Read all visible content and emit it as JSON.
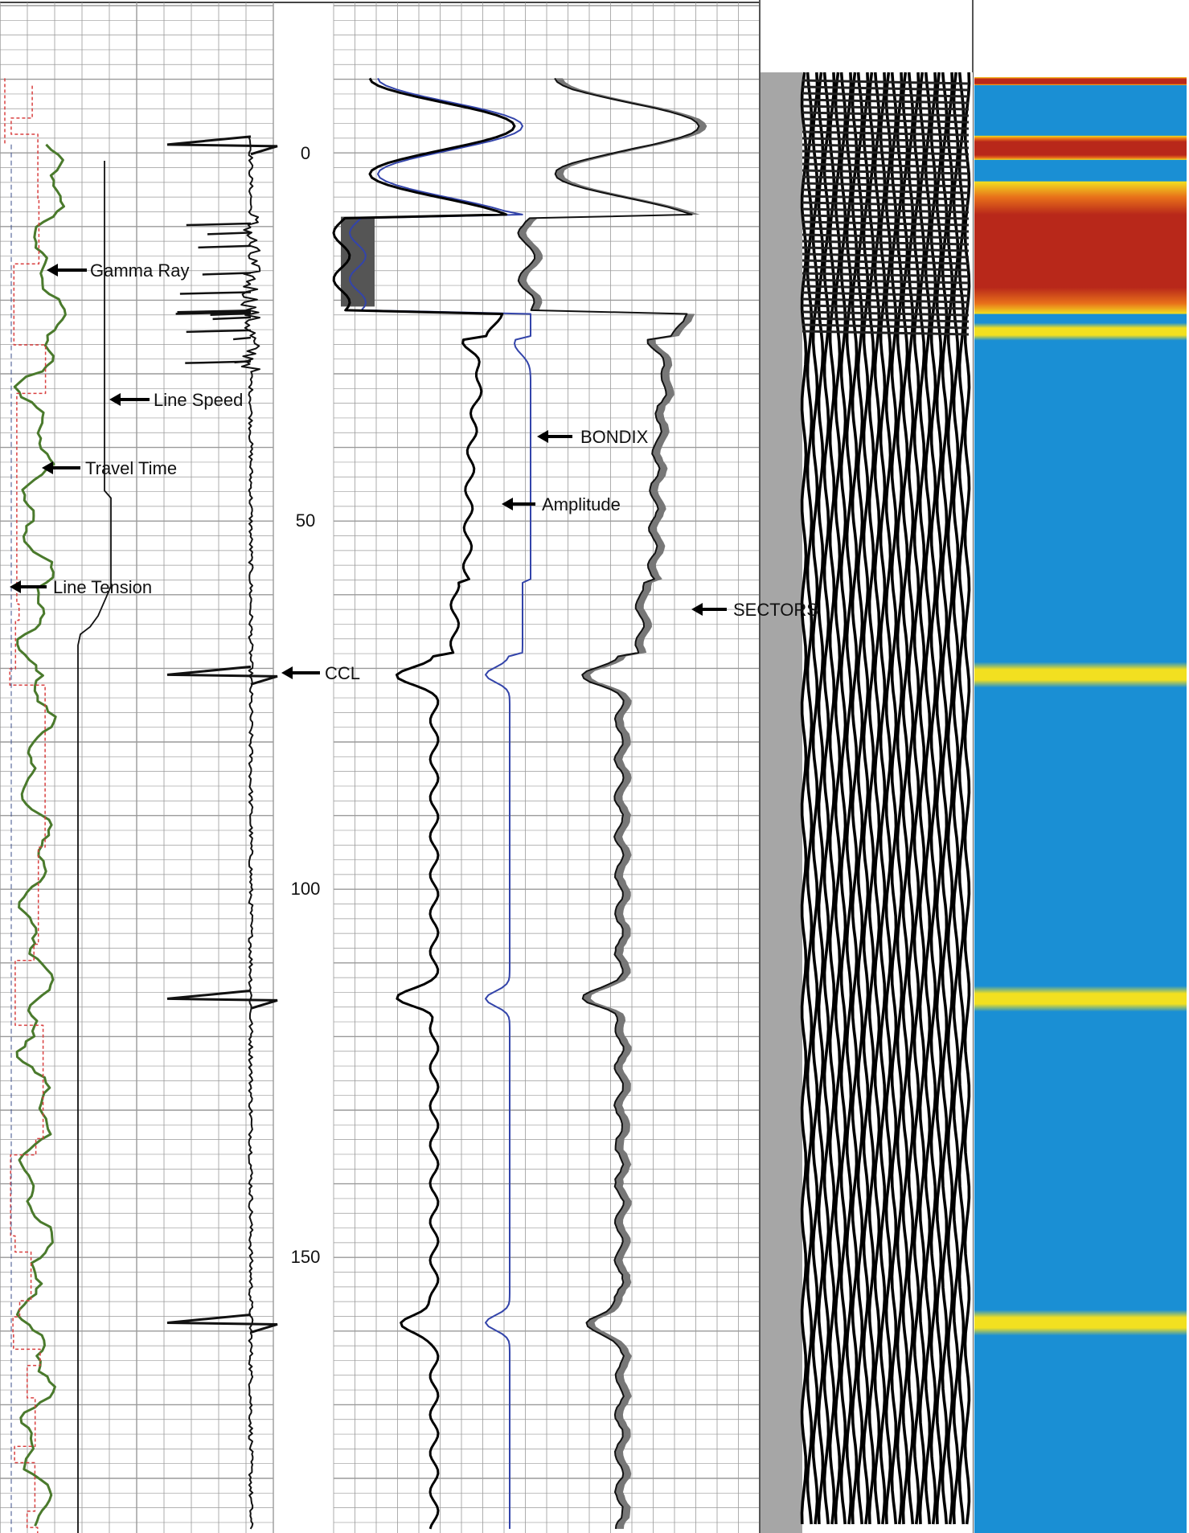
{
  "chart_data": {
    "type": "line",
    "depth_ticks": [
      {
        "value": 0,
        "label": "0"
      },
      {
        "value": 50,
        "label": "50"
      },
      {
        "value": 100,
        "label": "100"
      },
      {
        "value": 150,
        "label": "150"
      }
    ],
    "annotations": {
      "gamma_ray": "Gamma Ray",
      "line_speed": "Line Speed",
      "travel_time": "Travel Time",
      "line_tension": "Line Tension",
      "ccl": "CCL",
      "bondix": "BONDIX",
      "amplitude": "Amplitude",
      "sectors": "SECTORS"
    },
    "ccl_spike_depths": [
      -1,
      71,
      115,
      159
    ],
    "collar_depths": [
      71,
      115,
      159
    ],
    "free_pipe_interval": [
      -8,
      22
    ],
    "colors": {
      "gamma_ray": "#4a7a2c",
      "travel_time": "#d94040",
      "bondix": "#3344aa",
      "amplitude": "#000000",
      "map_blue": "#1a8fd4",
      "map_yellow": "#f2e020",
      "map_red": "#b8281a"
    }
  }
}
